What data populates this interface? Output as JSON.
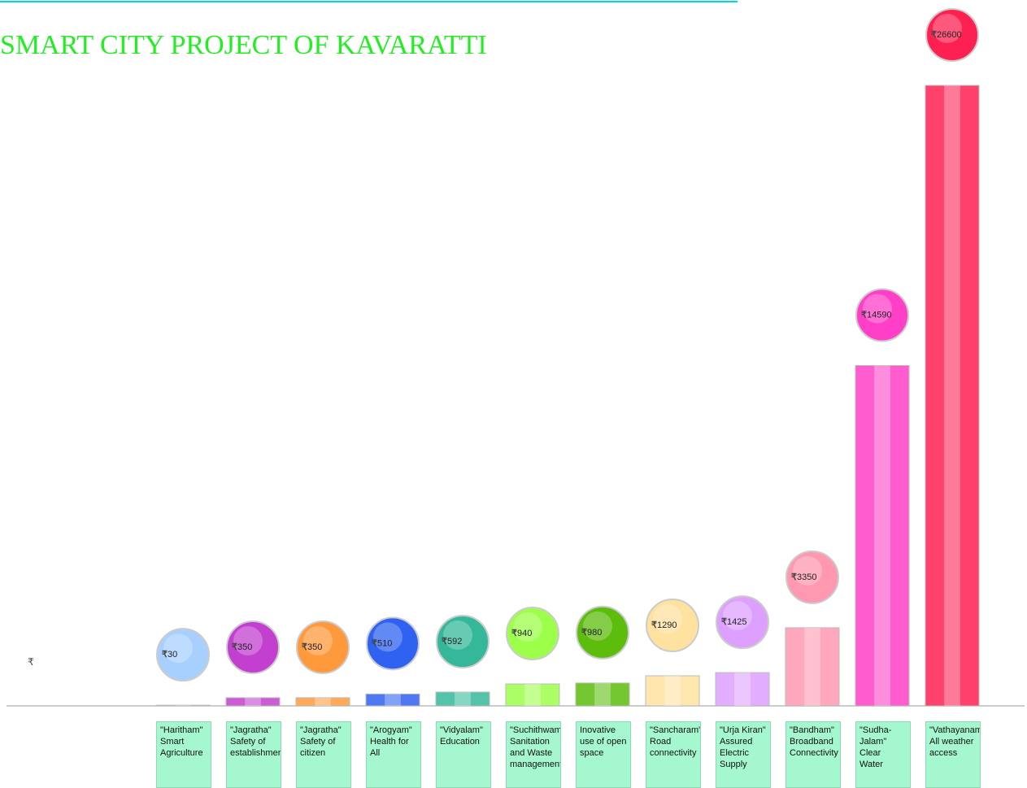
{
  "chart_data": {
    "type": "bar",
    "title": "SMART CITY PROJECT OF KAVARATTI",
    "currency_symbol": "₹",
    "categories": [
      "\"Haritham\" Smart Agriculture",
      "\"Jagratha\" Safety of establishment",
      "\"Jagratha\" Safety of citizen",
      "\"Arogyam\" Health for All",
      "\"Vidyalam\" Education",
      "\"Suchithwam\" Sanitation and Waste management",
      "Inovative use of open space",
      "\"Sancharam\" Road connectivity",
      "\"Urja Kiran\" Assured Electric Supply",
      "\"Bandham\" Broadband Connectivity",
      "\"Sudha-Jalam\" Clear Water",
      "\"Vathayanam\" All weather access"
    ],
    "values": [
      30,
      350,
      350,
      510,
      592,
      940,
      980,
      1290,
      1425,
      3350,
      14590,
      26600
    ],
    "colors": [
      "#a8d0ff",
      "#c23fcf",
      "#ff9a3c",
      "#2f62f0",
      "#35b89a",
      "#9cff4a",
      "#5cbd0c",
      "#ffe1a0",
      "#dea0ff",
      "#ff98b0",
      "#ff3fc8",
      "#ff2052"
    ],
    "ylim": [
      0,
      26600
    ]
  }
}
